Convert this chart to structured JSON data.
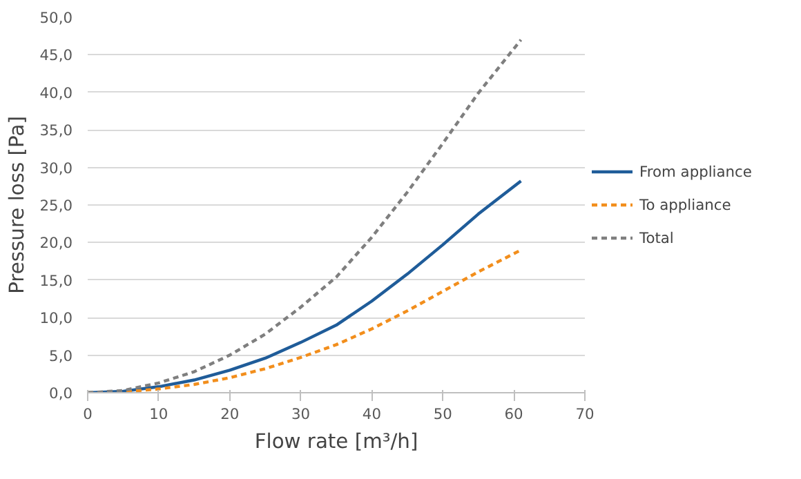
{
  "chart_data": {
    "type": "line",
    "xlabel": "Flow rate [m³/h]",
    "ylabel": "Pressure loss [Pa]",
    "x": [
      0,
      5,
      10,
      15,
      20,
      25,
      30,
      35,
      40,
      45,
      50,
      55,
      61
    ],
    "series": [
      {
        "name": "From appliance",
        "color": "#1f5c99",
        "line_style": "solid",
        "values": [
          0,
          0.2,
          0.8,
          1.7,
          3.0,
          4.6,
          6.7,
          9.0,
          12.2,
          15.8,
          19.7,
          23.8,
          28.2
        ]
      },
      {
        "name": "To appliance",
        "color": "#f28e1c",
        "line_style": "dashed",
        "values": [
          0,
          0.1,
          0.5,
          1.1,
          2.0,
          3.2,
          4.7,
          6.4,
          8.5,
          10.9,
          13.5,
          16.1,
          19.0
        ]
      },
      {
        "name": "Total",
        "color": "#7f7f7f",
        "line_style": "dashed",
        "values": [
          0,
          0.3,
          1.3,
          2.8,
          5.0,
          7.8,
          11.4,
          15.4,
          20.7,
          26.7,
          33.2,
          39.9,
          47.0
        ]
      }
    ],
    "xlim": [
      0,
      70
    ],
    "xticks": [
      0,
      10,
      20,
      30,
      40,
      50,
      60,
      70
    ],
    "ylim": [
      0,
      50
    ],
    "yticks": [
      {
        "value": 0,
        "label": "0,0"
      },
      {
        "value": 5,
        "label": "5,0"
      },
      {
        "value": 10,
        "label": "10,0"
      },
      {
        "value": 15,
        "label": "15,0"
      },
      {
        "value": 20,
        "label": "20,0"
      },
      {
        "value": 25,
        "label": "25,0"
      },
      {
        "value": 30,
        "label": "30,0"
      },
      {
        "value": 35,
        "label": "35,0"
      },
      {
        "value": 40,
        "label": "40,0"
      },
      {
        "value": 45,
        "label": "45,0"
      },
      {
        "value": 50,
        "label": "50,0"
      }
    ],
    "grid": "y",
    "legend": "right",
    "marker": "none"
  }
}
